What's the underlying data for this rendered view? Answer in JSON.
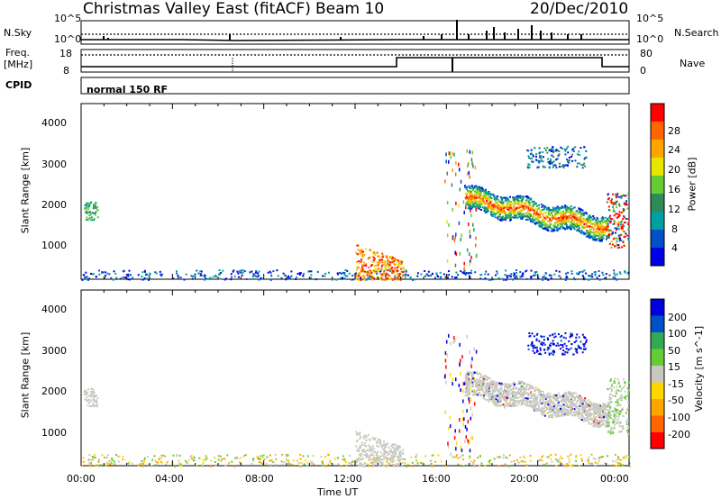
{
  "header": {
    "title": "Christmas Valley East (fitACF)",
    "beam": "Beam 10",
    "date": "20/Dec/2010"
  },
  "aux_panels": {
    "nsky_label": "N.Sky",
    "nsearch_label": "N.Search",
    "noise_ticks_left": [
      "10^5",
      "10^0"
    ],
    "noise_ticks_right": [
      "10^5",
      "10^0"
    ],
    "freq_label_line1": "Freq.",
    "freq_label_line2": "[MHz]",
    "freq_ticks": [
      "18",
      "8"
    ],
    "nave_ticks": [
      "80",
      "0"
    ],
    "nave_label": "Nave",
    "cpid_label": "CPID",
    "cpid_value": "normal 150 RF"
  },
  "colors": {
    "power_scale": [
      "#0000e6",
      "#0050c8",
      "#00a0a0",
      "#2e8b57",
      "#66cc33",
      "#e6e600",
      "#ffa500",
      "#ff6600",
      "#ff0000"
    ],
    "velocity_scale": [
      "#0000dd",
      "#0050c8",
      "#33aa55",
      "#66cc33",
      "#c8c8c0",
      "#ffd700",
      "#ffa500",
      "#ff6600",
      "#ff0000"
    ]
  },
  "chart_data": [
    {
      "type": "heatmap",
      "panel": "power",
      "ylabel": "Slant Range [km]",
      "yticks": [
        "1000",
        "2000",
        "3000",
        "4000"
      ],
      "ylim": [
        200,
        4600
      ],
      "xlim": [
        "00:00",
        "24:00"
      ],
      "colorbar_label": "Power [dB]",
      "colorbar_ticks": [
        "4",
        "8",
        "12",
        "16",
        "20",
        "24",
        "28"
      ]
    },
    {
      "type": "heatmap",
      "panel": "velocity",
      "ylabel": "Slant Range [km]",
      "yticks": [
        "1000",
        "2000",
        "3000",
        "4000"
      ],
      "ylim": [
        200,
        4600
      ],
      "xlim": [
        "00:00",
        "24:00"
      ],
      "colorbar_label": "Velocity [m s^-1]",
      "colorbar_ticks": [
        "200",
        "100",
        "50",
        "15",
        "-15",
        "-50",
        "-100",
        "-200"
      ]
    }
  ],
  "x_axis": {
    "ticks": [
      "00:00",
      "04:00",
      "08:00",
      "12:00",
      "16:00",
      "20:00",
      "00:00"
    ],
    "label": "Time UT"
  }
}
